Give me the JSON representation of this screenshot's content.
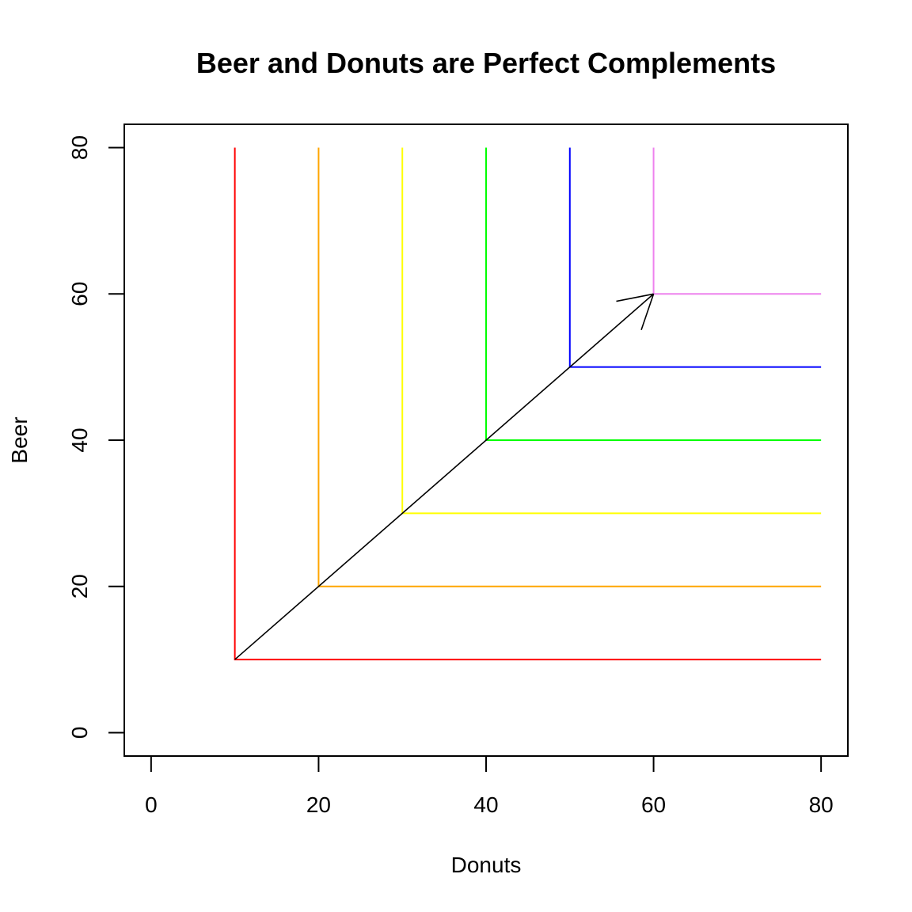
{
  "chart_data": {
    "type": "line",
    "title": "Beer and Donuts are Perfect Complements",
    "xlabel": "Donuts",
    "ylabel": "Beer",
    "xlim": [
      -3.2,
      83.2
    ],
    "ylim": [
      -3.2,
      83.2
    ],
    "x_ticks": [
      0,
      20,
      40,
      60,
      80
    ],
    "y_ticks": [
      0,
      20,
      40,
      60,
      80
    ],
    "grid": false,
    "legend": "none",
    "series": [
      {
        "corner": [
          10,
          10
        ],
        "x_max": 80,
        "y_max": 80,
        "color": "#ff0000"
      },
      {
        "corner": [
          20,
          20
        ],
        "x_max": 80,
        "y_max": 80,
        "color": "#ffa500"
      },
      {
        "corner": [
          30,
          30
        ],
        "x_max": 80,
        "y_max": 80,
        "color": "#ffff00"
      },
      {
        "corner": [
          40,
          40
        ],
        "x_max": 80,
        "y_max": 80,
        "color": "#00ff00"
      },
      {
        "corner": [
          50,
          50
        ],
        "x_max": 80,
        "y_max": 80,
        "color": "#0000ff"
      },
      {
        "corner": [
          60,
          60
        ],
        "x_max": 80,
        "y_max": 80,
        "color": "#ee82ee"
      }
    ],
    "annotations": [
      {
        "type": "arrow",
        "from": [
          10,
          10
        ],
        "to": [
          60,
          60
        ],
        "color": "#000000"
      }
    ]
  }
}
